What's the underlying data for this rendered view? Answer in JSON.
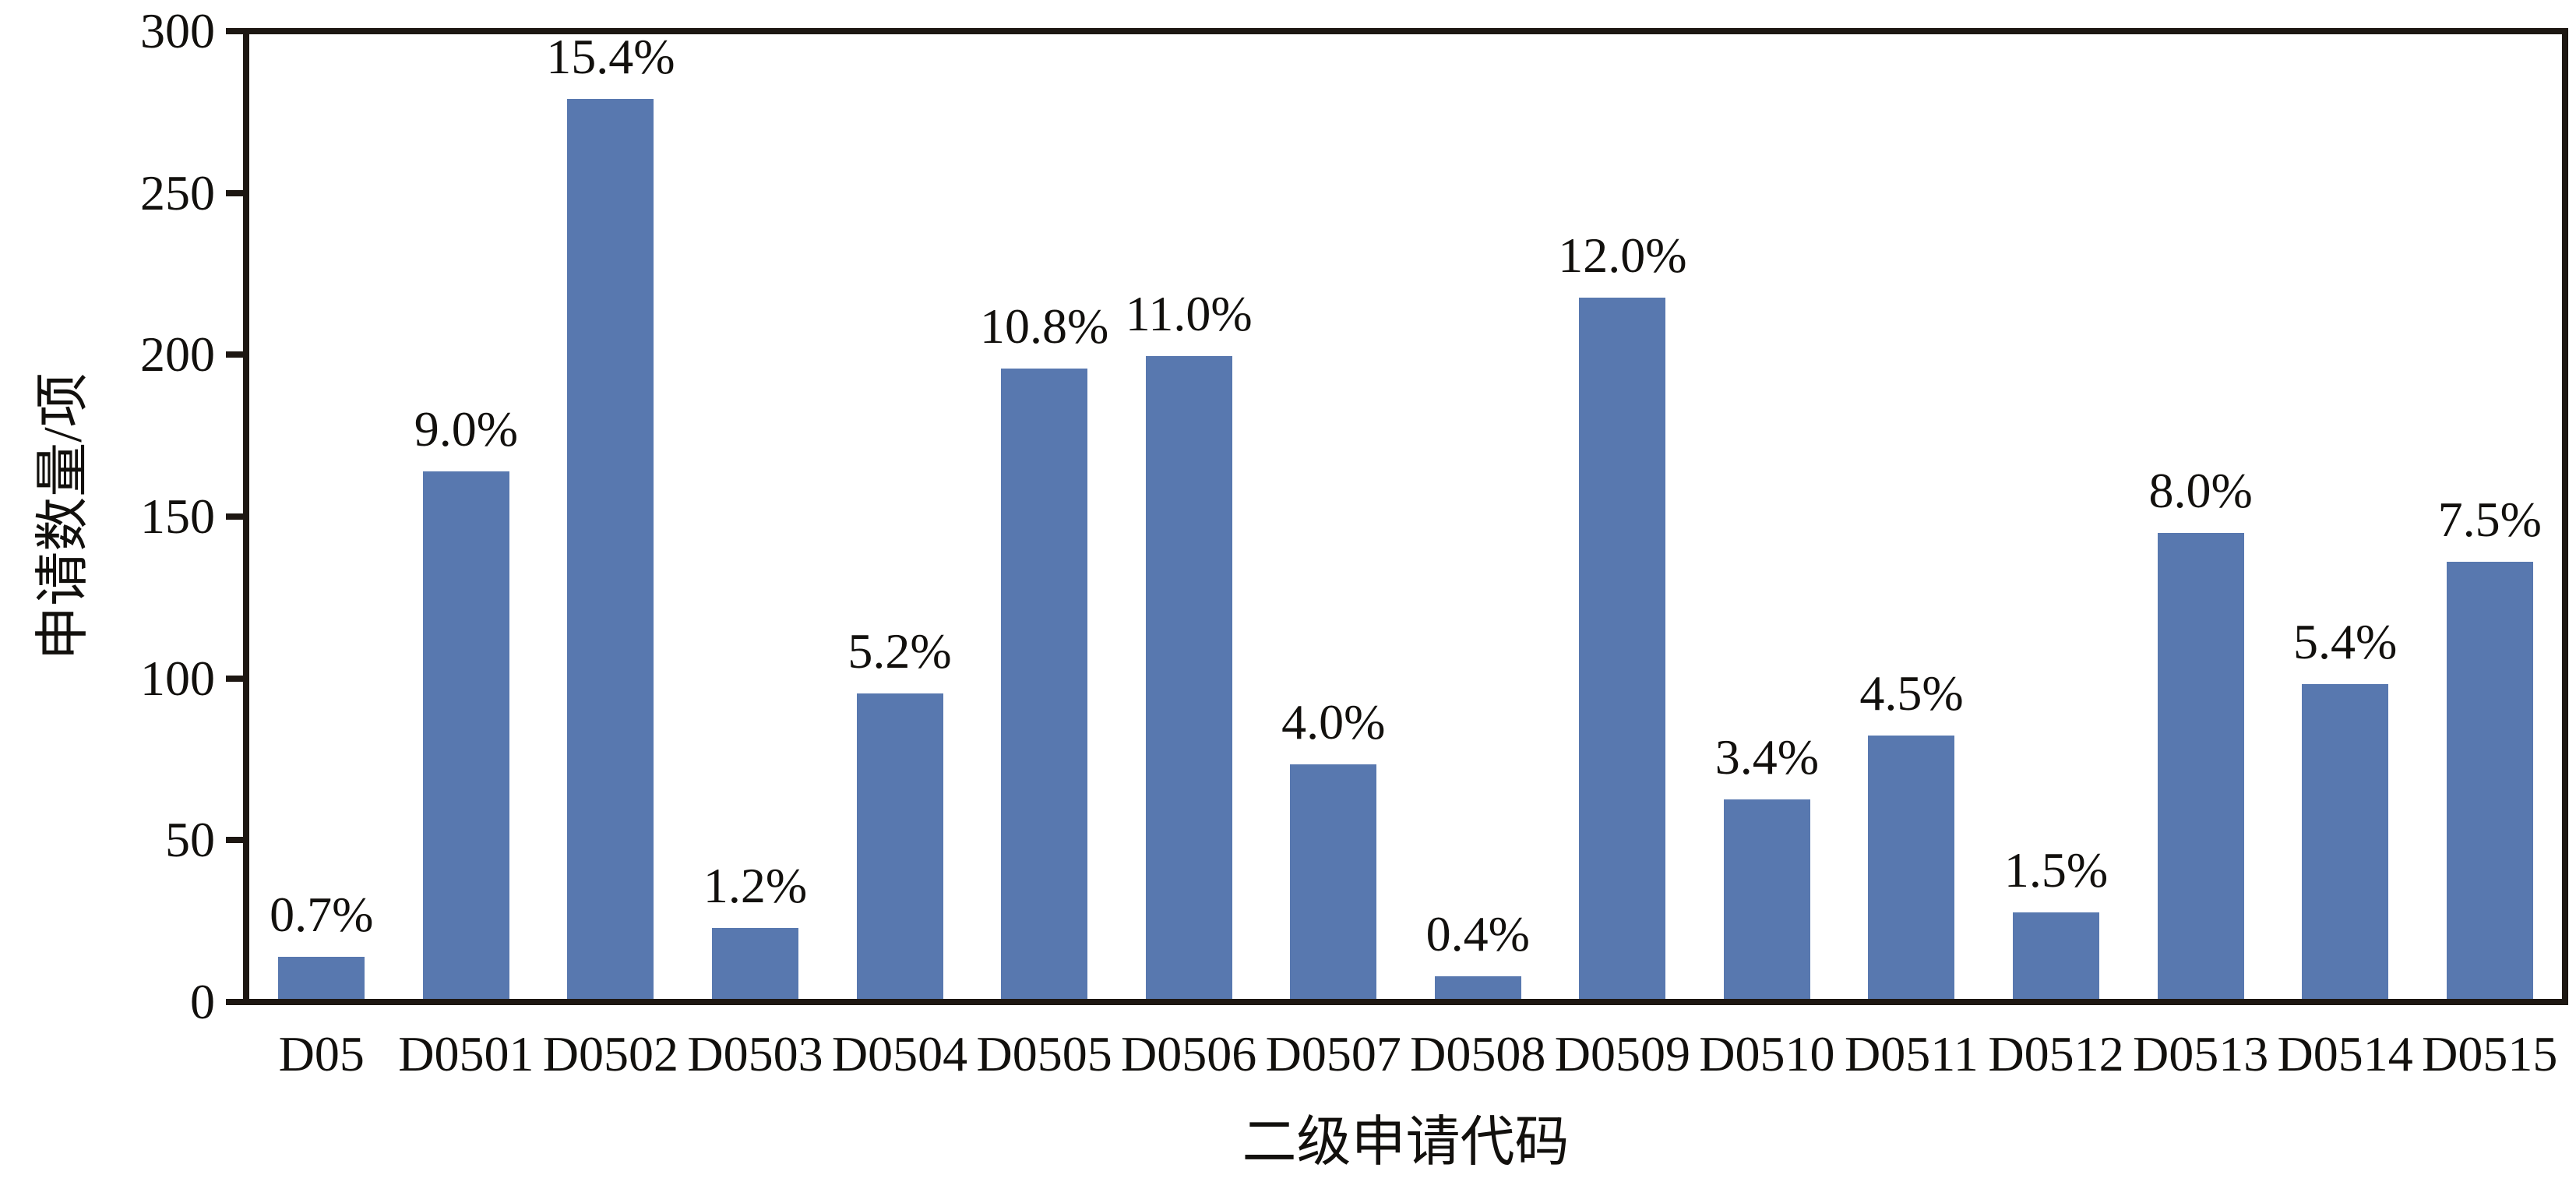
{
  "chart_data": {
    "type": "bar",
    "title": "",
    "xlabel": "二级申请代码",
    "ylabel": "申请数量/项",
    "categories": [
      "D05",
      "D0501",
      "D0502",
      "D0503",
      "D0504",
      "D0505",
      "D0506",
      "D0507",
      "D0508",
      "D0509",
      "D0510",
      "D0511",
      "D0512",
      "D0513",
      "D0514",
      "D0515"
    ],
    "values": [
      13,
      164,
      280,
      22,
      95,
      196,
      200,
      73,
      7,
      218,
      62,
      82,
      27,
      145,
      98,
      136
    ],
    "bar_labels": [
      "0.7%",
      "9.0%",
      "15.4%",
      "1.2%",
      "5.2%",
      "10.8%",
      "11.0%",
      "4.0%",
      "0.4%",
      "12.0%",
      "3.4%",
      "4.5%",
      "1.5%",
      "8.0%",
      "5.4%",
      "7.5%"
    ],
    "ylim": [
      0,
      300
    ],
    "yticks": [
      0,
      50,
      100,
      150,
      200,
      250,
      300
    ],
    "grid": false,
    "legend": "none",
    "colors": {
      "bar": "#5878AF",
      "axis": "#1D1712",
      "text": "#12100D",
      "background": "#FFFFFF"
    }
  }
}
